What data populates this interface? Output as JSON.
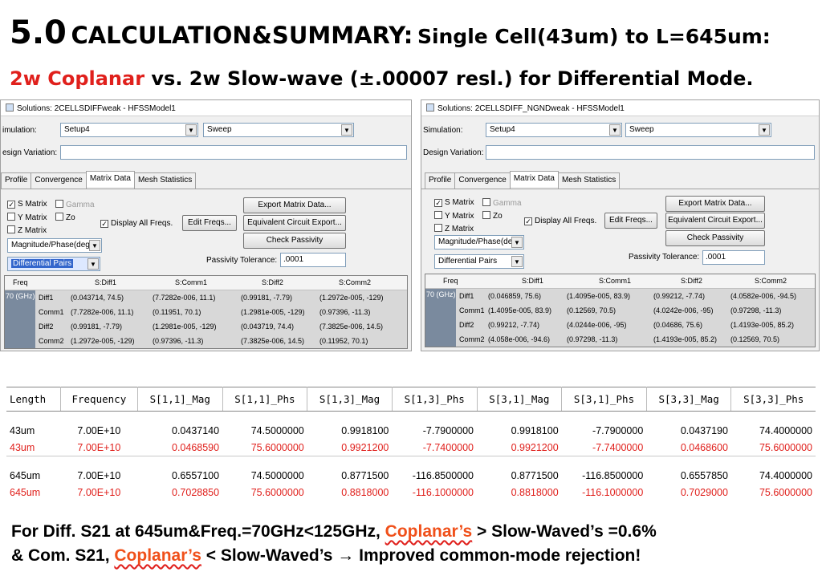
{
  "title": {
    "number": "5.0",
    "heading": "CALCULATION&SUMMARY:",
    "subject": "Single Cell(43um)  to  L=645um:",
    "line2_red": "2w Coplanar",
    "line2_rest": " vs. 2w Slow-wave (±.00007 resl.) for Differential Mode."
  },
  "colors": {
    "red": "#e0201c",
    "orange": "#f0501a",
    "freq_column": "#7a8a9e",
    "grid_body": "#d8d8d8"
  },
  "panels": [
    {
      "window_title": "Solutions: 2CELLSDIFFweak - HFSSModel1",
      "simulation_label": "imulation:",
      "setup": "Setup4",
      "sweep": "Sweep",
      "design_variation_label": "esign Variation:",
      "tabs": [
        "Profile",
        "Convergence",
        "Matrix Data",
        "Mesh Statistics"
      ],
      "active_tab": "Matrix Data",
      "s_matrix": "S Matrix",
      "gamma": "Gamma",
      "y_matrix": "Y Matrix",
      "zo": "Zo",
      "z_matrix": "Z Matrix",
      "display_all_freqs": "Display All Freqs.",
      "edit_freqs": "Edit Freqs...",
      "export_matrix": "Export Matrix Data...",
      "equivalent_circuit": "Equivalent Circuit Export...",
      "check_passivity": "Check Passivity",
      "format": "Magnitude/Phase(deg",
      "pairs": "Differential Pairs",
      "passivity_label": "Passivity Tolerance:",
      "passivity_value": ".0001",
      "grid_headers": [
        "Freq",
        "S:Diff1",
        "S:Comm1",
        "S:Diff2",
        "S:Comm2"
      ],
      "grid_freq": "70 (GHz)",
      "grid_rows": [
        {
          "name": "Diff1",
          "cells": [
            "(0.043714,   74.5)",
            "(7.7282e-006,   11.1)",
            "(0.99181,   -7.79)",
            "(1.2972e-005,   -129)"
          ]
        },
        {
          "name": "Comm1",
          "cells": [
            "(7.7282e-006,   11.1)",
            "(0.11951,   70.1)",
            "(1.2981e-005,   -129)",
            "(0.97396,   -11.3)"
          ]
        },
        {
          "name": "Diff2",
          "cells": [
            "(0.99181,   -7.79)",
            "(1.2981e-005,   -129)",
            "(0.043719,   74.4)",
            "(7.3825e-006,   14.5)"
          ]
        },
        {
          "name": "Comm2",
          "cells": [
            "(1.2972e-005,   -129)",
            "(0.97396,   -11.3)",
            "(7.3825e-006,   14.5)",
            "(0.11952,   70.1)"
          ]
        }
      ]
    },
    {
      "window_title": "Solutions: 2CELLSDIFF_NGNDweak - HFSSModel1",
      "simulation_label": "Simulation:",
      "setup": "Setup4",
      "sweep": "Sweep",
      "design_variation_label": "Design Variation:",
      "tabs": [
        "Profile",
        "Convergence",
        "Matrix Data",
        "Mesh Statistics"
      ],
      "active_tab": "Matrix Data",
      "s_matrix": "S Matrix",
      "gamma": "Gamma",
      "y_matrix": "Y Matrix",
      "zo": "Zo",
      "z_matrix": "Z Matrix",
      "display_all_freqs": "Display All Freqs.",
      "edit_freqs": "Edit Freqs...",
      "export_matrix": "Export Matrix Data...",
      "equivalent_circuit": "Equivalent Circuit Export...",
      "check_passivity": "Check Passivity",
      "format": "Magnitude/Phase(deg",
      "pairs": "Differential Pairs",
      "passivity_label": "Passivity Tolerance:",
      "passivity_value": ".0001",
      "grid_headers": [
        "Freq",
        "S:Diff1",
        "S:Comm1",
        "S:Diff2",
        "S:Comm2"
      ],
      "grid_freq": "70 (GHz)",
      "grid_rows": [
        {
          "name": "Diff1",
          "cells": [
            "(0.046859,   75.6)",
            "(1.4095e-005,   83.9)",
            "(0.99212,   -7.74)",
            "(4.0582e-006,   -94.5)"
          ]
        },
        {
          "name": "Comm1",
          "cells": [
            "(1.4095e-005,   83.9)",
            "(0.12569,   70.5)",
            "(4.0242e-006,   -95)",
            "(0.97298,   -11.3)"
          ]
        },
        {
          "name": "Diff2",
          "cells": [
            "(0.99212,   -7.74)",
            "(4.0244e-006,   -95)",
            "(0.04686,   75.6)",
            "(1.4193e-005,   85.2)"
          ]
        },
        {
          "name": "Comm2",
          "cells": [
            "(4.058e-006,   -94.6)",
            "(0.97298,   -11.3)",
            "(1.4193e-005,   85.2)",
            "(0.12569,   70.5)"
          ]
        }
      ]
    }
  ],
  "table": {
    "headers": [
      "Length",
      "Frequency",
      "S[1,1]_Mag",
      "S[1,1]_Phs",
      "S[1,3]_Mag",
      "S[1,3]_Phs",
      "S[3,1]_Mag",
      "S[3,1]_Phs",
      "S[3,3]_Mag",
      "S[3,3]_Phs"
    ],
    "rows": [
      {
        "color": "black",
        "cells": [
          "43um",
          "7.00E+10",
          "0.0437140",
          "74.5000000",
          "0.9918100",
          "-7.7900000",
          "0.9918100",
          "-7.7900000",
          "0.0437190",
          "74.4000000"
        ]
      },
      {
        "color": "red",
        "cells": [
          "43um",
          "7.00E+10",
          "0.0468590",
          "75.6000000",
          "0.9921200",
          "-7.7400000",
          "0.9921200",
          "-7.7400000",
          "0.0468600",
          "75.6000000"
        ]
      },
      {
        "color": "black",
        "cells": [
          "645um",
          "7.00E+10",
          "0.6557100",
          "74.5000000",
          "0.8771500",
          "-116.8500000",
          "0.8771500",
          "-116.8500000",
          "0.6557850",
          "74.4000000"
        ]
      },
      {
        "color": "red",
        "cells": [
          "645um",
          "7.00E+10",
          "0.7028850",
          "75.6000000",
          "0.8818000",
          "-116.1000000",
          "0.8818000",
          "-116.1000000",
          "0.7029000",
          "75.6000000"
        ]
      }
    ]
  },
  "summary": {
    "l1_a": "For Diff. S21 at 645um&Freq.=70GHz<125GHz,  ",
    "l1_b": "Coplanar’s",
    "l1_c": " > Slow-Waved’s =0.6%",
    "l2_a": "& Com. S21, ",
    "l2_b": "Coplanar’s",
    "l2_c": " < Slow-Waved’s  → Improved common-mode rejection!"
  }
}
